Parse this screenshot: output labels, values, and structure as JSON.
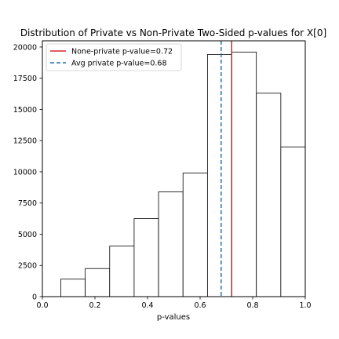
{
  "chart_data": {
    "type": "bar",
    "title": "Distribution of Private vs Non-Private Two-Sided p-values for X[0]",
    "xlabel": "p-values",
    "ylabel": "",
    "xlim": [
      0.0,
      1.0
    ],
    "ylim": [
      0,
      20500
    ],
    "xticks": [
      "0.0",
      "0.2",
      "0.4",
      "0.6",
      "0.8",
      "1.0"
    ],
    "yticks": [
      "0",
      "2500",
      "5000",
      "7500",
      "10000",
      "12500",
      "15000",
      "17500",
      "20000"
    ],
    "bin_edges": [
      0.07,
      0.163,
      0.256,
      0.349,
      0.442,
      0.535,
      0.628,
      0.721,
      0.814,
      0.907,
      1.0
    ],
    "values": [
      1400,
      2250,
      4050,
      6250,
      8400,
      9900,
      19400,
      19600,
      16300,
      12000
    ],
    "reference_lines": [
      {
        "label": "None-private p-value=0.72",
        "x": 0.72,
        "color": "#d62728",
        "style": "solid"
      },
      {
        "label": "Avg private p-value=0.68",
        "x": 0.68,
        "color": "#1f77b4",
        "style": "dashed"
      }
    ],
    "legend_position": "top-left",
    "grid": false,
    "bar_fill": "#ffffff",
    "bar_edge": "#000000"
  }
}
